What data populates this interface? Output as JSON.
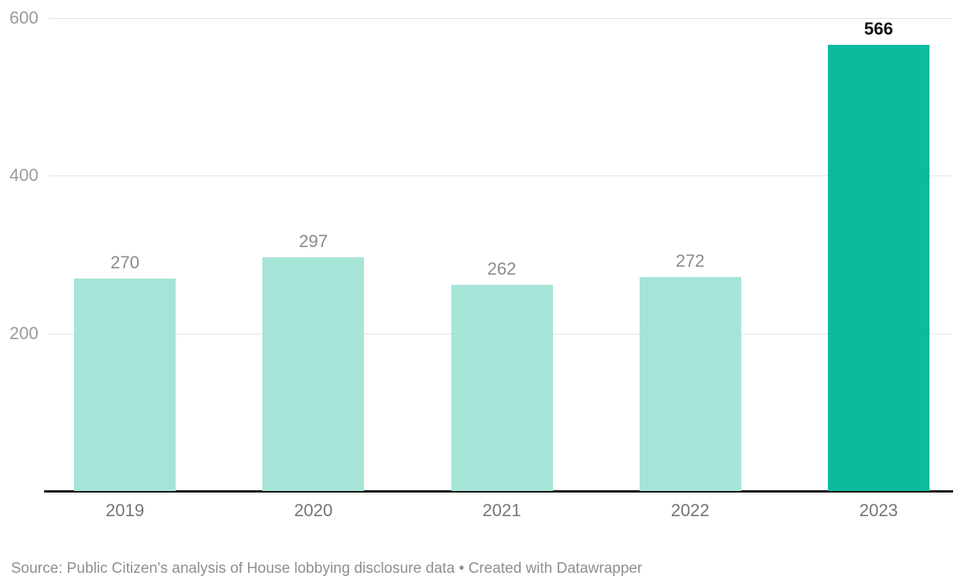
{
  "chart_data": {
    "type": "bar",
    "categories": [
      "2019",
      "2020",
      "2021",
      "2022",
      "2023"
    ],
    "values": [
      270,
      297,
      262,
      272,
      566
    ],
    "value_labels": [
      "270",
      "297",
      "262",
      "272",
      "566"
    ],
    "highlight_index": 4,
    "title": "",
    "xlabel": "",
    "ylabel": "",
    "ylim": [
      0,
      600
    ],
    "y_ticks": [
      200,
      400,
      600
    ],
    "y_tick_labels": [
      "200",
      "400",
      "600"
    ],
    "grid": true,
    "legend": "none",
    "colors": {
      "bar_default": "#a7e4d8",
      "bar_highlight": "#0abb9e",
      "value_label_default": "#8b8b8b",
      "value_label_highlight": "#131313",
      "gridline": "#e3e3e3",
      "axis_line": "#141414",
      "tick_label": "#9a9a9a",
      "category_label": "#757575",
      "source_text": "#8f8f8f",
      "background": "#ffffff"
    }
  },
  "footer": {
    "source": "Source: Public Citizen's analysis of House lobbying disclosure data • Created with Datawrapper"
  }
}
